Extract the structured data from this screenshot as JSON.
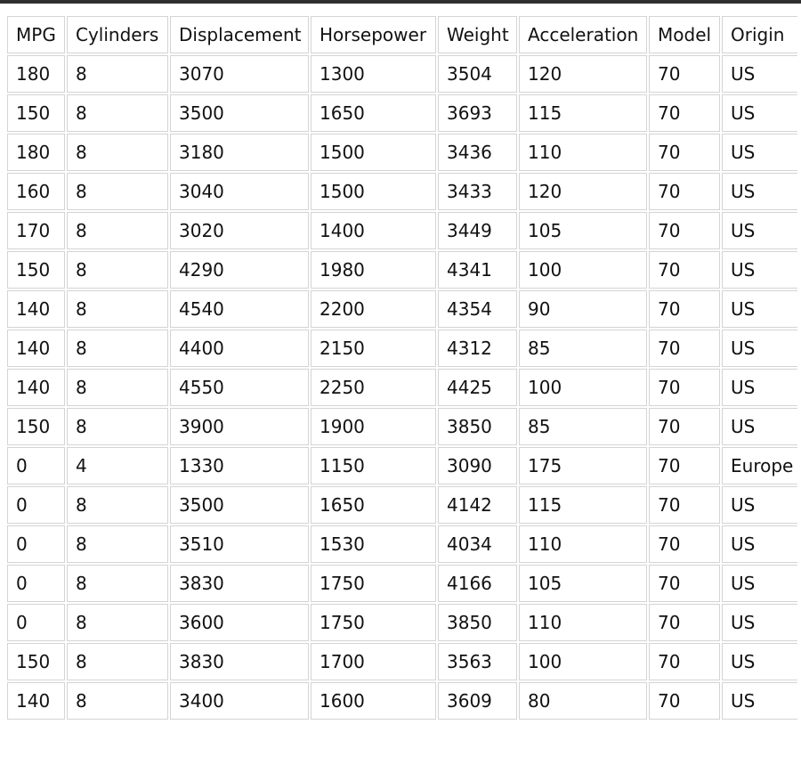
{
  "table": {
    "columns": [
      "MPG",
      "Cylinders",
      "Displacement",
      "Horsepower",
      "Weight",
      "Acceleration",
      "Model",
      "Origin"
    ],
    "rows": [
      [
        "180",
        "8",
        "3070",
        "1300",
        "3504",
        "120",
        "70",
        "US"
      ],
      [
        "150",
        "8",
        "3500",
        "1650",
        "3693",
        "115",
        "70",
        "US"
      ],
      [
        "180",
        "8",
        "3180",
        "1500",
        "3436",
        "110",
        "70",
        "US"
      ],
      [
        "160",
        "8",
        "3040",
        "1500",
        "3433",
        "120",
        "70",
        "US"
      ],
      [
        "170",
        "8",
        "3020",
        "1400",
        "3449",
        "105",
        "70",
        "US"
      ],
      [
        "150",
        "8",
        "4290",
        "1980",
        "4341",
        "100",
        "70",
        "US"
      ],
      [
        "140",
        "8",
        "4540",
        "2200",
        "4354",
        "90",
        "70",
        "US"
      ],
      [
        "140",
        "8",
        "4400",
        "2150",
        "4312",
        "85",
        "70",
        "US"
      ],
      [
        "140",
        "8",
        "4550",
        "2250",
        "4425",
        "100",
        "70",
        "US"
      ],
      [
        "150",
        "8",
        "3900",
        "1900",
        "3850",
        "85",
        "70",
        "US"
      ],
      [
        "0",
        "4",
        "1330",
        "1150",
        "3090",
        "175",
        "70",
        "Europe"
      ],
      [
        "0",
        "8",
        "3500",
        "1650",
        "4142",
        "115",
        "70",
        "US"
      ],
      [
        "0",
        "8",
        "3510",
        "1530",
        "4034",
        "110",
        "70",
        "US"
      ],
      [
        "0",
        "8",
        "3830",
        "1750",
        "4166",
        "105",
        "70",
        "US"
      ],
      [
        "0",
        "8",
        "3600",
        "1750",
        "3850",
        "110",
        "70",
        "US"
      ],
      [
        "150",
        "8",
        "3830",
        "1700",
        "3563",
        "100",
        "70",
        "US"
      ],
      [
        "140",
        "8",
        "3400",
        "1600",
        "3609",
        "80",
        "70",
        "US"
      ]
    ]
  },
  "colors": {
    "top_bar": "#2f2f2f",
    "cell_border": "#d4d4d4",
    "text": "#111111",
    "background": "#ffffff"
  }
}
